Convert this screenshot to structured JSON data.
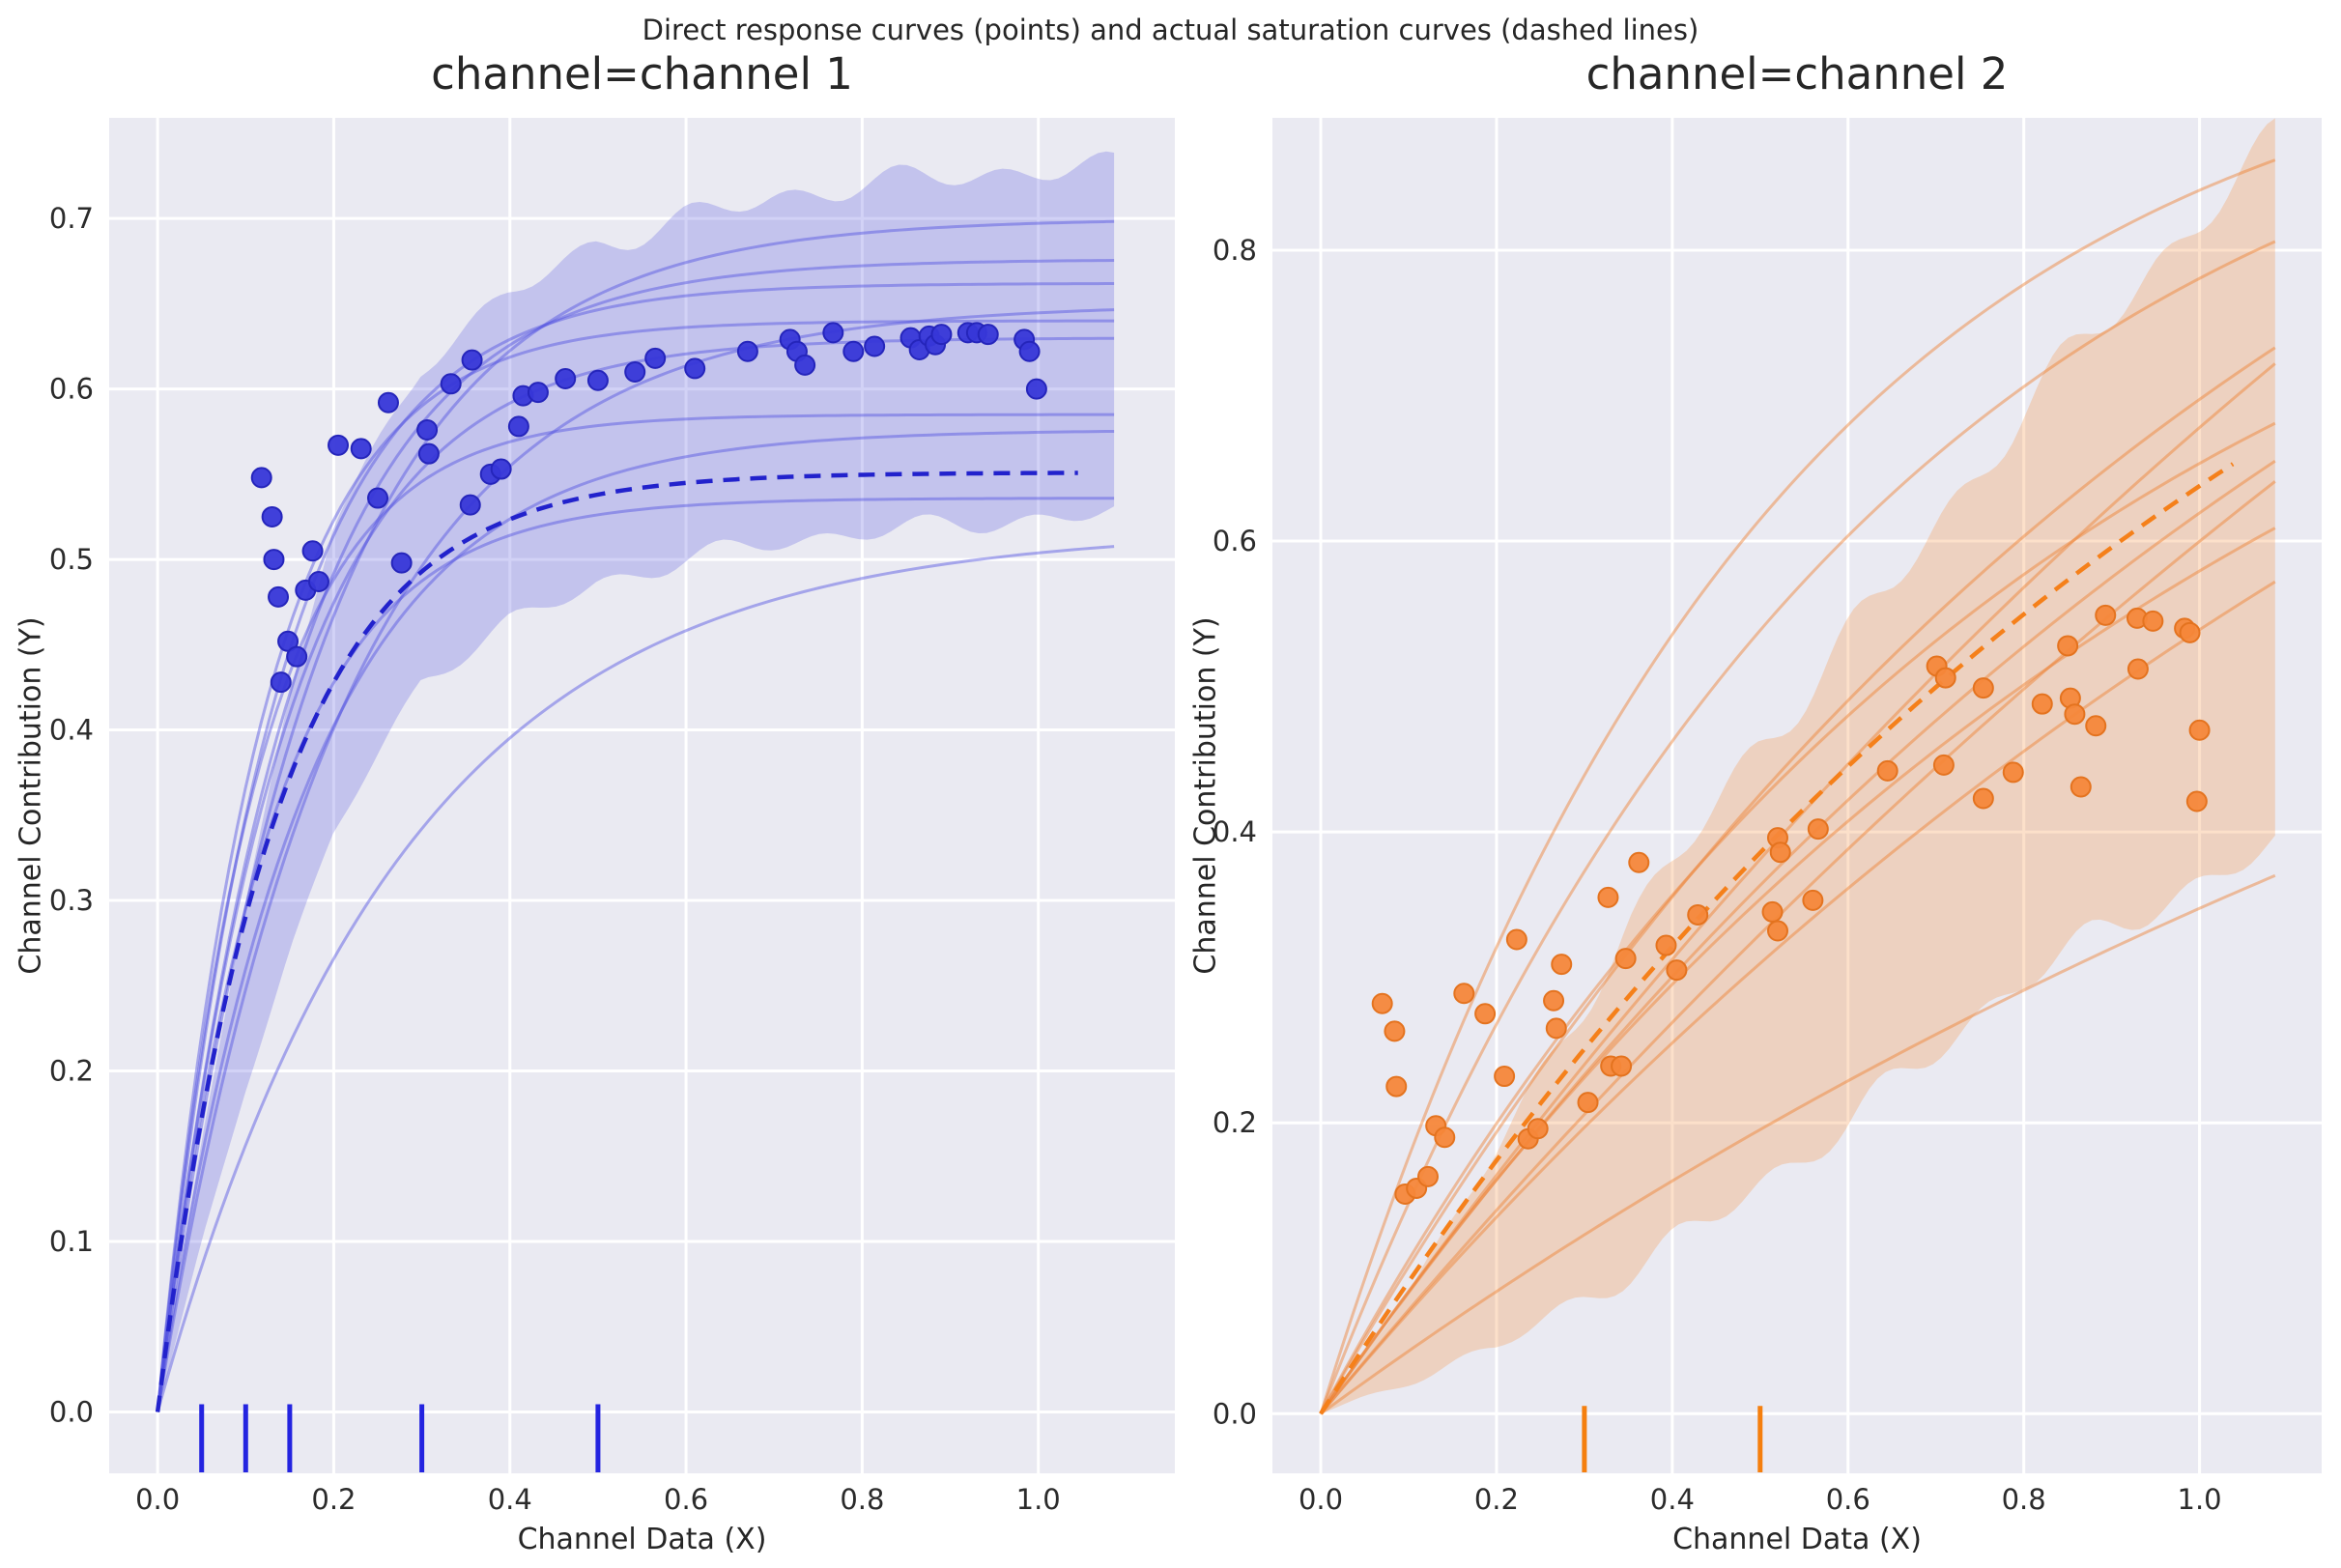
{
  "figure": {
    "suptitle": "Direct response curves (points) and actual saturation curves (dashed lines)",
    "background": "#ffffff",
    "axes_background": "#eaeaf2",
    "grid_color": "#ffffff",
    "text_color": "#262626"
  },
  "chart_data": [
    {
      "type": "scatter",
      "title": "channel=channel 1",
      "xlabel": "Channel Data (X)",
      "ylabel": "Channel Contribution (Y)",
      "legend": "none",
      "grid": true,
      "xlim": [
        -0.055,
        1.155
      ],
      "ylim": [
        -0.036,
        0.759
      ],
      "xticks": [
        0.0,
        0.2,
        0.4,
        0.6,
        0.8,
        1.0
      ],
      "yticks": [
        0.0,
        0.1,
        0.2,
        0.3,
        0.4,
        0.5,
        0.6,
        0.7
      ],
      "colors": {
        "point": "#3737d8",
        "point_edge": "#2525bb",
        "dashed_line": "#2222cc",
        "sample_line": "rgba(80,80,225,0.45)",
        "band_fill": "rgba(105,105,225,0.30)",
        "rug": "#2424e0"
      },
      "points": [
        [
          0.118,
          0.548
        ],
        [
          0.13,
          0.525
        ],
        [
          0.132,
          0.5
        ],
        [
          0.137,
          0.478
        ],
        [
          0.148,
          0.452
        ],
        [
          0.14,
          0.428
        ],
        [
          0.158,
          0.443
        ],
        [
          0.168,
          0.482
        ],
        [
          0.183,
          0.487
        ],
        [
          0.176,
          0.505
        ],
        [
          0.205,
          0.567
        ],
        [
          0.231,
          0.565
        ],
        [
          0.262,
          0.592
        ],
        [
          0.25,
          0.536
        ],
        [
          0.277,
          0.498
        ],
        [
          0.306,
          0.576
        ],
        [
          0.308,
          0.562
        ],
        [
          0.333,
          0.603
        ],
        [
          0.355,
          0.532
        ],
        [
          0.357,
          0.617
        ],
        [
          0.378,
          0.55
        ],
        [
          0.39,
          0.553
        ],
        [
          0.41,
          0.578
        ],
        [
          0.415,
          0.596
        ],
        [
          0.432,
          0.598
        ],
        [
          0.463,
          0.606
        ],
        [
          0.5,
          0.605
        ],
        [
          0.542,
          0.61
        ],
        [
          0.565,
          0.618
        ],
        [
          0.61,
          0.612
        ],
        [
          0.67,
          0.622
        ],
        [
          0.718,
          0.629
        ],
        [
          0.726,
          0.622
        ],
        [
          0.735,
          0.614
        ],
        [
          0.767,
          0.633
        ],
        [
          0.79,
          0.622
        ],
        [
          0.814,
          0.625
        ],
        [
          0.855,
          0.63
        ],
        [
          0.865,
          0.623
        ],
        [
          0.876,
          0.631
        ],
        [
          0.883,
          0.626
        ],
        [
          0.89,
          0.632
        ],
        [
          0.92,
          0.633
        ],
        [
          0.93,
          0.633
        ],
        [
          0.943,
          0.632
        ],
        [
          0.984,
          0.629
        ],
        [
          0.99,
          0.622
        ],
        [
          0.998,
          0.6
        ]
      ],
      "sample_curves": [
        {
          "sat": 0.7,
          "rate": 5.5
        },
        {
          "sat": 0.676,
          "rate": 6.5
        },
        {
          "sat": 0.662,
          "rate": 7.5
        },
        {
          "sat": 0.65,
          "rate": 4.8
        },
        {
          "sat": 0.64,
          "rate": 8.5
        },
        {
          "sat": 0.63,
          "rate": 7.0
        },
        {
          "sat": 0.585,
          "rate": 9.0
        },
        {
          "sat": 0.576,
          "rate": 6.0
        },
        {
          "sat": 0.536,
          "rate": 8.0
        },
        {
          "sat": 0.518,
          "rate": 3.6
        }
      ],
      "actual_curve": {
        "sat": 0.551,
        "rate": 7.5,
        "x_end": 1.045
      },
      "band": {
        "x_end": 1.086,
        "roughness": 0.006,
        "upper": [
          [
            0,
            0
          ],
          [
            0.05,
            0.16
          ],
          [
            0.1,
            0.3
          ],
          [
            0.15,
            0.42
          ],
          [
            0.2,
            0.52
          ],
          [
            0.3,
            0.615
          ],
          [
            0.4,
            0.655
          ],
          [
            0.5,
            0.685
          ],
          [
            0.6,
            0.7
          ],
          [
            0.7,
            0.712
          ],
          [
            0.8,
            0.72
          ],
          [
            0.9,
            0.725
          ],
          [
            1.0,
            0.728
          ],
          [
            1.086,
            0.73
          ]
        ],
        "lower": [
          [
            0,
            0
          ],
          [
            0.05,
            0.1
          ],
          [
            0.1,
            0.19
          ],
          [
            0.15,
            0.27
          ],
          [
            0.2,
            0.34
          ],
          [
            0.3,
            0.43
          ],
          [
            0.4,
            0.462
          ],
          [
            0.5,
            0.486
          ],
          [
            0.6,
            0.5
          ],
          [
            0.7,
            0.51
          ],
          [
            0.8,
            0.516
          ],
          [
            0.9,
            0.52
          ],
          [
            1.0,
            0.524
          ],
          [
            1.086,
            0.527
          ]
        ]
      },
      "rug": [
        0.05,
        0.1,
        0.15,
        0.3,
        0.5
      ]
    },
    {
      "type": "scatter",
      "title": "channel=channel 2",
      "xlabel": "Channel Data (X)",
      "ylabel": "Channel Contribution (Y)",
      "legend": "none",
      "grid": true,
      "xlim": [
        -0.055,
        1.139
      ],
      "ylim": [
        -0.041,
        0.891
      ],
      "xticks": [
        0.0,
        0.2,
        0.4,
        0.6,
        0.8,
        1.0
      ],
      "yticks": [
        0.0,
        0.2,
        0.4,
        0.6,
        0.8
      ],
      "colors": {
        "point": "#f5873a",
        "point_edge": "#e4731f",
        "dashed_line": "#f5801a",
        "sample_line": "rgba(238,126,46,0.45)",
        "band_fill": "rgba(243,144,64,0.28)",
        "rug": "#f57f0e"
      },
      "points": [
        [
          0.07,
          0.282
        ],
        [
          0.084,
          0.263
        ],
        [
          0.086,
          0.225
        ],
        [
          0.096,
          0.151
        ],
        [
          0.109,
          0.155
        ],
        [
          0.122,
          0.163
        ],
        [
          0.131,
          0.198
        ],
        [
          0.141,
          0.19
        ],
        [
          0.163,
          0.289
        ],
        [
          0.187,
          0.275
        ],
        [
          0.209,
          0.232
        ],
        [
          0.223,
          0.326
        ],
        [
          0.236,
          0.189
        ],
        [
          0.247,
          0.196
        ],
        [
          0.265,
          0.284
        ],
        [
          0.268,
          0.265
        ],
        [
          0.274,
          0.309
        ],
        [
          0.304,
          0.214
        ],
        [
          0.327,
          0.355
        ],
        [
          0.347,
          0.313
        ],
        [
          0.33,
          0.239
        ],
        [
          0.342,
          0.239
        ],
        [
          0.362,
          0.379
        ],
        [
          0.393,
          0.322
        ],
        [
          0.405,
          0.305
        ],
        [
          0.429,
          0.343
        ],
        [
          0.514,
          0.345
        ],
        [
          0.52,
          0.332
        ],
        [
          0.52,
          0.396
        ],
        [
          0.523,
          0.386
        ],
        [
          0.56,
          0.353
        ],
        [
          0.566,
          0.402
        ],
        [
          0.645,
          0.442
        ],
        [
          0.701,
          0.514
        ],
        [
          0.709,
          0.446
        ],
        [
          0.711,
          0.506
        ],
        [
          0.754,
          0.499
        ],
        [
          0.754,
          0.423
        ],
        [
          0.788,
          0.441
        ],
        [
          0.821,
          0.488
        ],
        [
          0.85,
          0.528
        ],
        [
          0.853,
          0.492
        ],
        [
          0.858,
          0.481
        ],
        [
          0.865,
          0.431
        ],
        [
          0.882,
          0.473
        ],
        [
          0.893,
          0.549
        ],
        [
          0.929,
          0.547
        ],
        [
          0.93,
          0.512
        ],
        [
          0.947,
          0.545
        ],
        [
          0.983,
          0.54
        ],
        [
          0.989,
          0.537
        ],
        [
          0.997,
          0.421
        ],
        [
          1.0,
          0.47
        ]
      ],
      "sample_curves": [
        {
          "end": 0.862,
          "rate": 2.0
        },
        {
          "end": 0.806,
          "rate": 1.6
        },
        {
          "end": 0.733,
          "rate": 0.9
        },
        {
          "end": 0.722,
          "rate": 0.5
        },
        {
          "end": 0.681,
          "rate": 1.2
        },
        {
          "end": 0.655,
          "rate": 0.7
        },
        {
          "end": 0.641,
          "rate": 0.4
        },
        {
          "end": 0.609,
          "rate": 0.9
        },
        {
          "end": 0.572,
          "rate": 0.6
        },
        {
          "end": 0.37,
          "rate": 0.5
        }
      ],
      "actual_curve": {
        "end": 0.653,
        "rate": 0.85,
        "x_end": 1.038
      },
      "band": {
        "x_end": 1.086,
        "roughness": 0.011,
        "upper": [
          [
            0,
            0
          ],
          [
            0.1,
            0.085
          ],
          [
            0.2,
            0.18
          ],
          [
            0.35,
            0.335
          ],
          [
            0.5,
            0.46
          ],
          [
            0.65,
            0.57
          ],
          [
            0.8,
            0.69
          ],
          [
            0.95,
            0.79
          ],
          [
            1.086,
            0.875
          ]
        ],
        "lower": [
          [
            0,
            0
          ],
          [
            0.2,
            0.045
          ],
          [
            0.4,
            0.115
          ],
          [
            0.6,
            0.2
          ],
          [
            0.8,
            0.3
          ],
          [
            0.95,
            0.35
          ],
          [
            1.086,
            0.39
          ]
        ]
      },
      "rug": [
        0.3,
        0.5
      ]
    }
  ]
}
